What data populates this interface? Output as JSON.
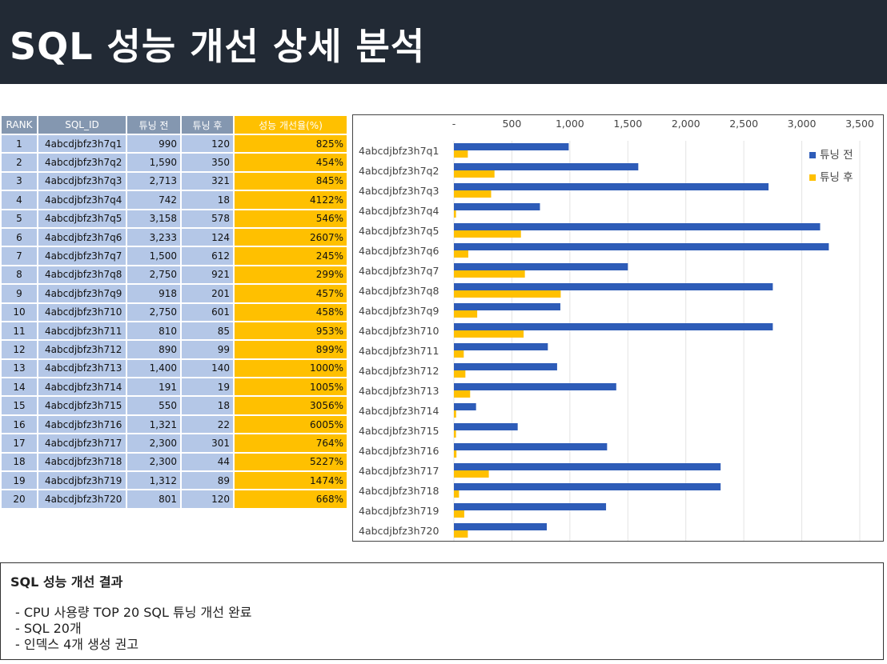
{
  "page": {
    "title": "SQL 성능 개선 상세 분석"
  },
  "table": {
    "headers": [
      "RANK",
      "SQL_ID",
      "튜닝 전",
      "튜닝 후",
      "성능 개선율(%)"
    ],
    "rows": [
      [
        "1",
        "4abcdjbfz3h7q1",
        "990",
        "120",
        "825%"
      ],
      [
        "2",
        "4abcdjbfz3h7q2",
        "1,590",
        "350",
        "454%"
      ],
      [
        "3",
        "4abcdjbfz3h7q3",
        "2,713",
        "321",
        "845%"
      ],
      [
        "4",
        "4abcdjbfz3h7q4",
        "742",
        "18",
        "4122%"
      ],
      [
        "5",
        "4abcdjbfz3h7q5",
        "3,158",
        "578",
        "546%"
      ],
      [
        "6",
        "4abcdjbfz3h7q6",
        "3,233",
        "124",
        "2607%"
      ],
      [
        "7",
        "4abcdjbfz3h7q7",
        "1,500",
        "612",
        "245%"
      ],
      [
        "8",
        "4abcdjbfz3h7q8",
        "2,750",
        "921",
        "299%"
      ],
      [
        "9",
        "4abcdjbfz3h7q9",
        "918",
        "201",
        "457%"
      ],
      [
        "10",
        "4abcdjbfz3h710",
        "2,750",
        "601",
        "458%"
      ],
      [
        "11",
        "4abcdjbfz3h711",
        "810",
        "85",
        "953%"
      ],
      [
        "12",
        "4abcdjbfz3h712",
        "890",
        "99",
        "899%"
      ],
      [
        "13",
        "4abcdjbfz3h713",
        "1,400",
        "140",
        "1000%"
      ],
      [
        "14",
        "4abcdjbfz3h714",
        "191",
        "19",
        "1005%"
      ],
      [
        "15",
        "4abcdjbfz3h715",
        "550",
        "18",
        "3056%"
      ],
      [
        "16",
        "4abcdjbfz3h716",
        "1,321",
        "22",
        "6005%"
      ],
      [
        "17",
        "4abcdjbfz3h717",
        "2,300",
        "301",
        "764%"
      ],
      [
        "18",
        "4abcdjbfz3h718",
        "2,300",
        "44",
        "5227%"
      ],
      [
        "19",
        "4abcdjbfz3h719",
        "1,312",
        "89",
        "1474%"
      ],
      [
        "20",
        "4abcdjbfz3h720",
        "801",
        "120",
        "668%"
      ]
    ]
  },
  "chart_data": {
    "type": "bar",
    "orientation": "horizontal",
    "categories": [
      "4abcdjbfz3h7q1",
      "4abcdjbfz3h7q2",
      "4abcdjbfz3h7q3",
      "4abcdjbfz3h7q4",
      "4abcdjbfz3h7q5",
      "4abcdjbfz3h7q6",
      "4abcdjbfz3h7q7",
      "4abcdjbfz3h7q8",
      "4abcdjbfz3h7q9",
      "4abcdjbfz3h710",
      "4abcdjbfz3h711",
      "4abcdjbfz3h712",
      "4abcdjbfz3h713",
      "4abcdjbfz3h714",
      "4abcdjbfz3h715",
      "4abcdjbfz3h716",
      "4abcdjbfz3h717",
      "4abcdjbfz3h718",
      "4abcdjbfz3h719",
      "4abcdjbfz3h720"
    ],
    "series": [
      {
        "name": "튜닝 전",
        "color": "#2e5cb8",
        "values": [
          990,
          1590,
          2713,
          742,
          3158,
          3233,
          1500,
          2750,
          918,
          2750,
          810,
          890,
          1400,
          191,
          550,
          1321,
          2300,
          2300,
          1312,
          801
        ]
      },
      {
        "name": "튜닝 후",
        "color": "#ffc000",
        "values": [
          120,
          350,
          321,
          18,
          578,
          124,
          612,
          921,
          201,
          601,
          85,
          99,
          140,
          19,
          18,
          22,
          301,
          44,
          89,
          120
        ]
      }
    ],
    "xlim": [
      0,
      3500
    ],
    "xticks": [
      "-",
      "500",
      "1,000",
      "1,500",
      "2,000",
      "2,500",
      "3,000",
      "3,500"
    ],
    "axis_position": "top",
    "grid": true,
    "legend": "top-right",
    "title": "",
    "xlabel": "",
    "ylabel": ""
  },
  "summary": {
    "title": "SQL 성능 개선 결과",
    "items": [
      "CPU 사용량 TOP 20 SQL 튜닝 개선 완료",
      "SQL 20개",
      "인덱스 4개 생성 권고"
    ]
  }
}
